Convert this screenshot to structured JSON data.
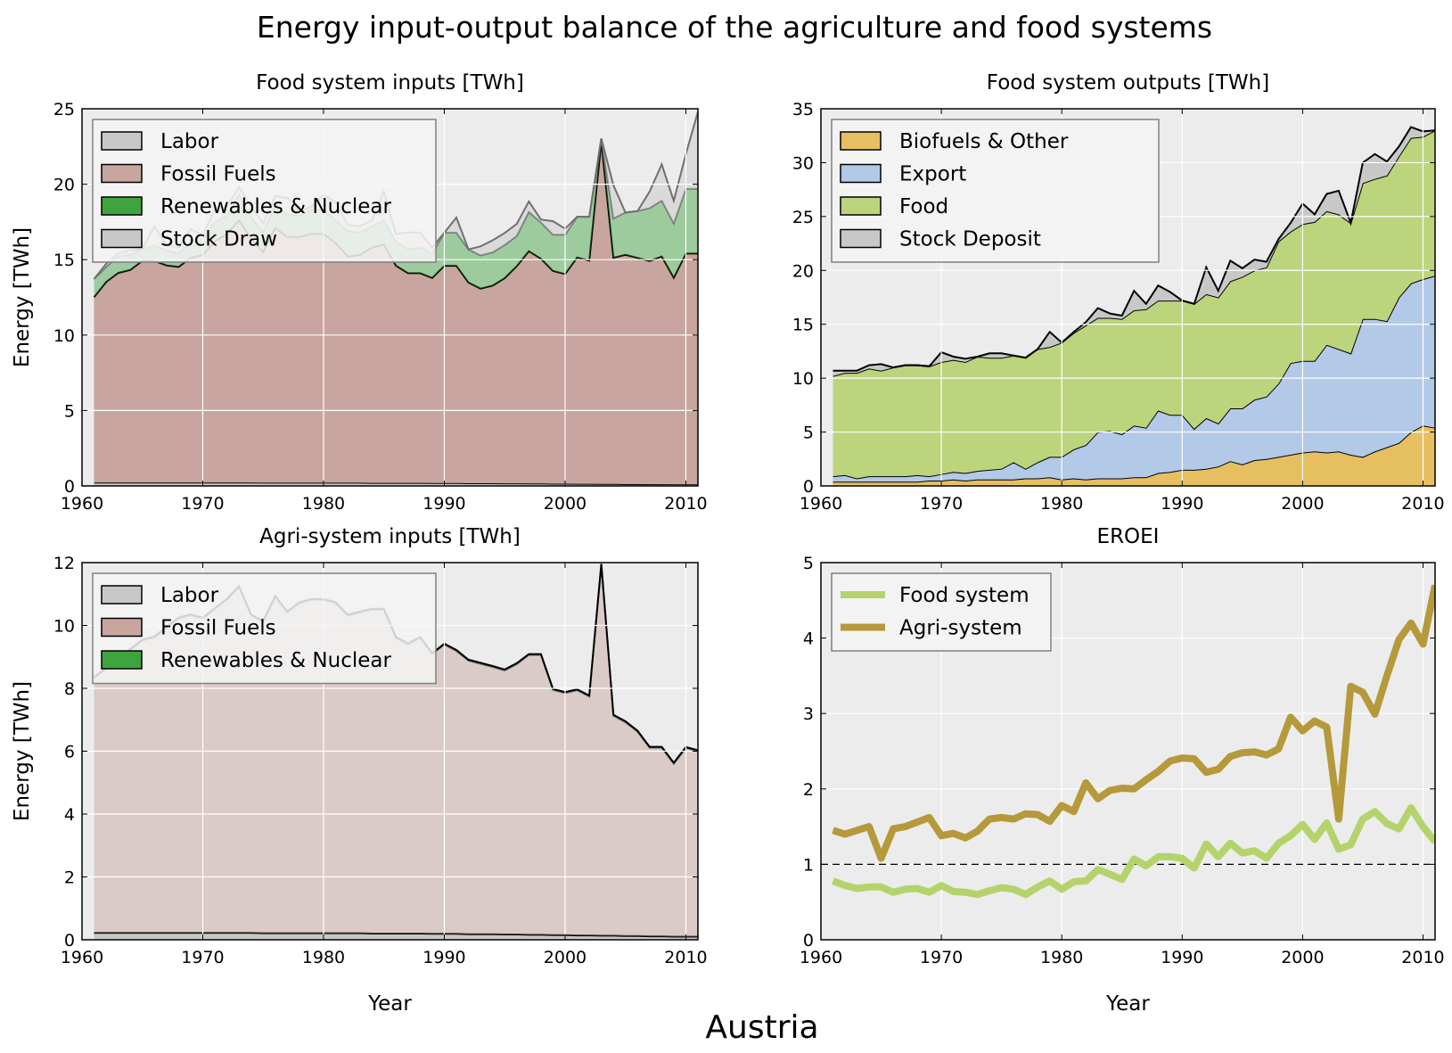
{
  "figure": {
    "title": "Energy input-output balance of the agriculture and food systems",
    "footer": "Austria"
  },
  "colors": {
    "labor": "#c8c8c8",
    "fossil": "#c8a59e",
    "renewables": "#3ea53e",
    "stock_draw": "#c8c8c8",
    "biofuels": "#e6bf60",
    "export": "#b3c9e8",
    "food": "#bcd47c",
    "stock_deposit": "#c8c8c8",
    "eroei_food": "#b5d36b",
    "eroei_agri": "#b5993a",
    "axes_bg": "#ececec",
    "legend_bg": "#f4f4f4"
  },
  "chart_data": [
    {
      "type": "area",
      "title": "Food system inputs [TWh]",
      "xlabel": "",
      "ylabel": "Energy [TWh]",
      "xlim": [
        1960,
        2011
      ],
      "ylim": [
        0,
        25
      ],
      "xticks": [
        1960,
        1970,
        1980,
        1990,
        2000,
        2010
      ],
      "yticks": [
        0,
        5,
        10,
        15,
        20,
        25
      ],
      "grid": true,
      "legend": "top-left",
      "x": [
        1961,
        1962,
        1963,
        1964,
        1965,
        1966,
        1967,
        1968,
        1969,
        1970,
        1971,
        1972,
        1973,
        1974,
        1975,
        1976,
        1977,
        1978,
        1979,
        1980,
        1981,
        1982,
        1983,
        1984,
        1985,
        1986,
        1987,
        1988,
        1989,
        1990,
        1991,
        1992,
        1993,
        1994,
        1995,
        1996,
        1997,
        1998,
        1999,
        2000,
        2001,
        2002,
        2003,
        2004,
        2005,
        2006,
        2007,
        2008,
        2009,
        2010,
        2011
      ],
      "series": [
        {
          "name": "Labor",
          "color_key": "labor",
          "values": [
            0.22,
            0.22,
            0.22,
            0.22,
            0.22,
            0.22,
            0.22,
            0.22,
            0.22,
            0.22,
            0.22,
            0.22,
            0.22,
            0.22,
            0.21,
            0.21,
            0.21,
            0.21,
            0.21,
            0.21,
            0.21,
            0.21,
            0.21,
            0.2,
            0.2,
            0.2,
            0.2,
            0.2,
            0.19,
            0.19,
            0.19,
            0.18,
            0.18,
            0.18,
            0.17,
            0.17,
            0.16,
            0.16,
            0.15,
            0.15,
            0.14,
            0.14,
            0.13,
            0.13,
            0.12,
            0.12,
            0.11,
            0.11,
            0.1,
            0.1,
            0.1
          ]
        },
        {
          "name": "Fossil Fuels",
          "color_key": "fossil",
          "values": [
            12.3,
            13.3,
            13.9,
            14.1,
            14.7,
            14.7,
            14.4,
            14.3,
            14.9,
            15.1,
            16.0,
            16.5,
            17.4,
            16.2,
            15.3,
            16.9,
            16.3,
            16.3,
            16.5,
            16.5,
            15.9,
            15.0,
            15.1,
            15.6,
            15.8,
            14.4,
            13.9,
            13.9,
            13.6,
            14.4,
            14.4,
            13.3,
            12.9,
            13.1,
            13.6,
            14.4,
            15.4,
            14.9,
            14.1,
            13.9,
            15.0,
            14.8,
            22.7,
            15.0,
            15.2,
            15.0,
            14.8,
            15.1,
            13.7,
            15.3,
            15.3
          ]
        },
        {
          "name": "Renewables & Nuclear",
          "color_key": "renewables",
          "values": [
            1.2,
            1.0,
            1.1,
            1.0,
            0.8,
            1.0,
            1.0,
            0.9,
            1.0,
            1.1,
            1.3,
            1.2,
            1.7,
            1.4,
            1.3,
            1.5,
            1.5,
            1.4,
            1.6,
            1.6,
            1.5,
            1.7,
            1.5,
            1.4,
            1.6,
            1.6,
            1.6,
            1.7,
            1.6,
            2.2,
            2.2,
            2.2,
            2.2,
            2.2,
            2.2,
            2.0,
            2.6,
            2.4,
            2.4,
            2.6,
            2.7,
            2.9,
            0.2,
            2.6,
            2.8,
            3.1,
            3.5,
            3.7,
            3.6,
            4.3,
            4.3
          ]
        },
        {
          "name": "Stock Draw",
          "color_key": "stock_draw",
          "values": [
            0,
            0.2,
            0.2,
            0.3,
            0,
            1.3,
            0.3,
            0.4,
            0.9,
            0.2,
            0.8,
            0.6,
            0.5,
            0.7,
            0.6,
            0.6,
            1.1,
            0.3,
            0.2,
            1.0,
            1.2,
            0.4,
            0.4,
            0.4,
            1.9,
            0.5,
            1.1,
            1.0,
            0.4,
            0,
            1.0,
            0,
            0.6,
            0.8,
            0.8,
            0.8,
            0.7,
            0.2,
            0.9,
            0.4,
            0,
            0,
            0,
            2.2,
            0,
            0,
            1.1,
            2.4,
            1.5,
            2.3,
            5.1
          ]
        }
      ]
    },
    {
      "type": "area",
      "title": "Food system outputs [TWh]",
      "xlabel": "",
      "ylabel": "",
      "xlim": [
        1960,
        2011
      ],
      "ylim": [
        0,
        35
      ],
      "xticks": [
        1960,
        1970,
        1980,
        1990,
        2000,
        2010
      ],
      "yticks": [
        0,
        5,
        10,
        15,
        20,
        25,
        30,
        35
      ],
      "grid": true,
      "legend": "top-left",
      "x": [
        1961,
        1962,
        1963,
        1964,
        1965,
        1966,
        1967,
        1968,
        1969,
        1970,
        1971,
        1972,
        1973,
        1974,
        1975,
        1976,
        1977,
        1978,
        1979,
        1980,
        1981,
        1982,
        1983,
        1984,
        1985,
        1986,
        1987,
        1988,
        1989,
        1990,
        1991,
        1992,
        1993,
        1994,
        1995,
        1996,
        1997,
        1998,
        1999,
        2000,
        2001,
        2002,
        2003,
        2004,
        2005,
        2006,
        2007,
        2008,
        2009,
        2010,
        2011
      ],
      "series": [
        {
          "name": "Biofuels & Other",
          "color_key": "biofuels",
          "values": [
            0.4,
            0.4,
            0.4,
            0.4,
            0.4,
            0.4,
            0.4,
            0.4,
            0.5,
            0.5,
            0.6,
            0.5,
            0.6,
            0.6,
            0.6,
            0.6,
            0.7,
            0.7,
            0.8,
            0.6,
            0.7,
            0.6,
            0.7,
            0.7,
            0.7,
            0.8,
            0.8,
            1.2,
            1.3,
            1.5,
            1.5,
            1.6,
            1.8,
            2.3,
            2.0,
            2.4,
            2.5,
            2.7,
            2.9,
            3.1,
            3.2,
            3.1,
            3.2,
            2.9,
            2.7,
            3.2,
            3.6,
            4.0,
            5.0,
            5.6,
            5.4
          ]
        },
        {
          "name": "Export",
          "color_key": "export",
          "values": [
            0.5,
            0.6,
            0.3,
            0.5,
            0.5,
            0.5,
            0.5,
            0.6,
            0.4,
            0.6,
            0.7,
            0.7,
            0.8,
            0.9,
            1.0,
            1.6,
            0.9,
            1.5,
            1.9,
            2.1,
            2.7,
            3.2,
            4.3,
            4.4,
            4.1,
            4.8,
            4.6,
            5.8,
            5.3,
            5.1,
            3.8,
            4.7,
            4.0,
            4.9,
            5.2,
            5.6,
            5.8,
            6.8,
            8.5,
            8.5,
            8.4,
            10.0,
            9.5,
            9.4,
            12.8,
            12.3,
            11.7,
            13.5,
            13.8,
            13.6,
            14.1
          ]
        },
        {
          "name": "Food",
          "color_key": "food",
          "values": [
            9.3,
            9.5,
            9.8,
            10.0,
            9.8,
            10.1,
            10.3,
            10.2,
            10.2,
            10.4,
            10.4,
            10.3,
            10.6,
            10.4,
            10.3,
            9.9,
            10.3,
            10.5,
            10.2,
            10.6,
            10.8,
            11.1,
            10.6,
            10.5,
            10.7,
            10.7,
            11.0,
            10.2,
            10.6,
            10.6,
            11.6,
            11.5,
            11.7,
            11.8,
            12.2,
            12.0,
            12.0,
            13.2,
            12.2,
            12.7,
            12.9,
            12.4,
            12.5,
            12.1,
            12.6,
            13.0,
            13.5,
            13.1,
            13.5,
            13.2,
            13.5
          ]
        },
        {
          "name": "Stock Deposit",
          "color_key": "stock_deposit",
          "values": [
            0.5,
            0.2,
            0.2,
            0.3,
            0.6,
            0.0,
            0.0,
            0.0,
            0.0,
            0.9,
            0.3,
            0.3,
            0.0,
            0.4,
            0.4,
            0.0,
            0.0,
            0.0,
            1.4,
            0.0,
            0.1,
            0.3,
            0.9,
            0.4,
            0.3,
            1.8,
            0.5,
            1.4,
            0.8,
            0.0,
            0.0,
            2.5,
            0.6,
            1.9,
            0.8,
            1.0,
            0.5,
            0.2,
            0.8,
            1.9,
            0.7,
            1.6,
            2.2,
            0.0,
            1.9,
            2.3,
            1.3,
            0.9,
            1.0,
            0.5,
            0.0
          ]
        }
      ]
    },
    {
      "type": "area",
      "title": "Agri-system inputs [TWh]",
      "xlabel": "Year",
      "ylabel": "Energy [TWh]",
      "xlim": [
        1960,
        2011
      ],
      "ylim": [
        0,
        12
      ],
      "xticks": [
        1960,
        1970,
        1980,
        1990,
        2000,
        2010
      ],
      "yticks": [
        0,
        2,
        4,
        6,
        8,
        10,
        12
      ],
      "grid": true,
      "legend": "top-left",
      "x": [
        1961,
        1962,
        1963,
        1964,
        1965,
        1966,
        1967,
        1968,
        1969,
        1970,
        1971,
        1972,
        1973,
        1974,
        1975,
        1976,
        1977,
        1978,
        1979,
        1980,
        1981,
        1982,
        1983,
        1984,
        1985,
        1986,
        1987,
        1988,
        1989,
        1990,
        1991,
        1992,
        1993,
        1994,
        1995,
        1996,
        1997,
        1998,
        1999,
        2000,
        2001,
        2002,
        2003,
        2004,
        2005,
        2006,
        2007,
        2008,
        2009,
        2010,
        2011
      ],
      "series": [
        {
          "name": "Labor",
          "color_key": "labor",
          "values": [
            0.22,
            0.22,
            0.22,
            0.22,
            0.22,
            0.22,
            0.22,
            0.22,
            0.22,
            0.22,
            0.22,
            0.22,
            0.22,
            0.22,
            0.21,
            0.21,
            0.21,
            0.21,
            0.21,
            0.21,
            0.21,
            0.21,
            0.21,
            0.2,
            0.2,
            0.2,
            0.2,
            0.2,
            0.19,
            0.19,
            0.19,
            0.18,
            0.18,
            0.18,
            0.17,
            0.17,
            0.16,
            0.16,
            0.15,
            0.15,
            0.14,
            0.14,
            0.13,
            0.13,
            0.12,
            0.12,
            0.11,
            0.11,
            0.1,
            0.1,
            0.1
          ]
        },
        {
          "name": "Fossil Fuels",
          "color_key": "fossil",
          "values": [
            8.1,
            8.4,
            8.7,
            9.0,
            9.3,
            9.4,
            9.7,
            10.0,
            10.1,
            10.0,
            10.3,
            10.6,
            11.0,
            10.1,
            9.9,
            10.7,
            10.2,
            10.5,
            10.6,
            10.6,
            10.5,
            10.1,
            10.2,
            10.3,
            10.3,
            9.4,
            9.2,
            9.4,
            8.9,
            9.2,
            9.0,
            8.7,
            8.6,
            8.5,
            8.4,
            8.6,
            8.9,
            8.9,
            7.8,
            7.7,
            7.8,
            7.6,
            11.8,
            7.0,
            6.8,
            6.5,
            6.0,
            6.0,
            5.5,
            6.0,
            5.9
          ]
        },
        {
          "name": "Renewables & Nuclear",
          "color_key": "renewables",
          "values": [
            0.03,
            0.03,
            0.03,
            0.03,
            0.03,
            0.03,
            0.03,
            0.03,
            0.03,
            0.03,
            0.03,
            0.03,
            0.03,
            0.03,
            0.03,
            0.03,
            0.03,
            0.03,
            0.03,
            0.03,
            0.03,
            0.03,
            0.03,
            0.03,
            0.03,
            0.03,
            0.03,
            0.03,
            0.03,
            0.03,
            0.03,
            0.03,
            0.03,
            0.03,
            0.03,
            0.03,
            0.03,
            0.03,
            0.03,
            0.03,
            0.03,
            0.03,
            0.03,
            0.03,
            0.03,
            0.03,
            0.03,
            0.03,
            0.03,
            0.03,
            0.03
          ]
        }
      ]
    },
    {
      "type": "line",
      "title": "EROEI",
      "xlabel": "Year",
      "ylabel": "",
      "xlim": [
        1960,
        2011
      ],
      "ylim": [
        0,
        5
      ],
      "xticks": [
        1960,
        1970,
        1980,
        1990,
        2000,
        2010
      ],
      "yticks": [
        0,
        1,
        2,
        3,
        4,
        5
      ],
      "grid": true,
      "legend": "top-left",
      "reference_line": 1,
      "x": [
        1961,
        1962,
        1963,
        1964,
        1965,
        1966,
        1967,
        1968,
        1969,
        1970,
        1971,
        1972,
        1973,
        1974,
        1975,
        1976,
        1977,
        1978,
        1979,
        1980,
        1981,
        1982,
        1983,
        1984,
        1985,
        1986,
        1987,
        1988,
        1989,
        1990,
        1991,
        1992,
        1993,
        1994,
        1995,
        1996,
        1997,
        1998,
        1999,
        2000,
        2001,
        2002,
        2003,
        2004,
        2005,
        2006,
        2007,
        2008,
        2009,
        2010,
        2011
      ],
      "series": [
        {
          "name": "Food system",
          "color_key": "eroei_food",
          "values": [
            0.78,
            0.72,
            0.68,
            0.7,
            0.7,
            0.63,
            0.67,
            0.68,
            0.63,
            0.72,
            0.64,
            0.63,
            0.6,
            0.65,
            0.69,
            0.67,
            0.6,
            0.7,
            0.78,
            0.67,
            0.77,
            0.78,
            0.93,
            0.87,
            0.8,
            1.07,
            0.98,
            1.1,
            1.1,
            1.08,
            0.95,
            1.27,
            1.1,
            1.28,
            1.15,
            1.18,
            1.08,
            1.28,
            1.38,
            1.53,
            1.33,
            1.55,
            1.2,
            1.26,
            1.6,
            1.7,
            1.54,
            1.47,
            1.75,
            1.5,
            1.3
          ]
        },
        {
          "name": "Agri-system",
          "color_key": "eroei_agri",
          "values": [
            1.45,
            1.4,
            1.45,
            1.5,
            1.08,
            1.47,
            1.5,
            1.56,
            1.62,
            1.38,
            1.41,
            1.35,
            1.44,
            1.6,
            1.62,
            1.6,
            1.67,
            1.66,
            1.57,
            1.78,
            1.7,
            2.08,
            1.87,
            1.98,
            2.01,
            2.0,
            2.12,
            2.23,
            2.37,
            2.41,
            2.4,
            2.22,
            2.26,
            2.43,
            2.48,
            2.49,
            2.45,
            2.53,
            2.95,
            2.77,
            2.9,
            2.82,
            1.6,
            3.36,
            3.28,
            2.99,
            3.5,
            3.98,
            4.2,
            3.92,
            4.7
          ]
        }
      ]
    }
  ]
}
